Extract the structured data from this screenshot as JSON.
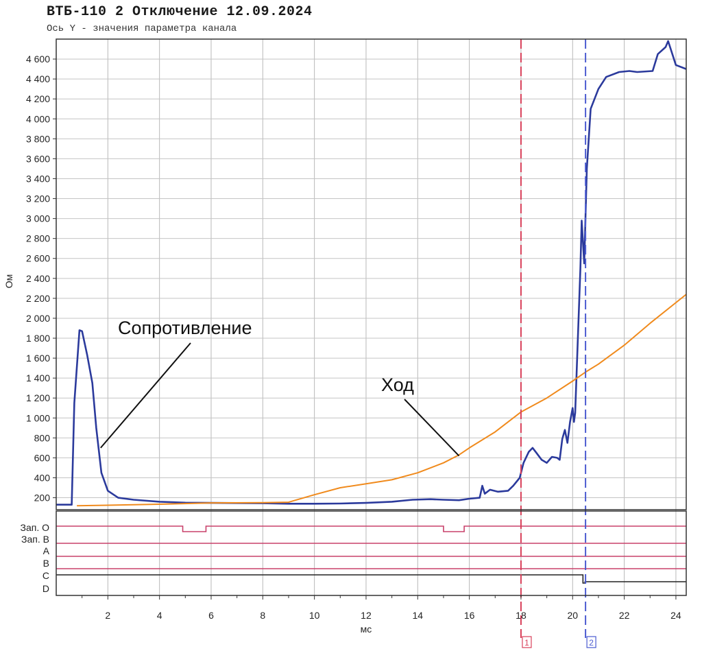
{
  "chart_data": {
    "type": "line",
    "title": "ВТБ-110 2 Отключение 12.09.2024",
    "subtitle": "Ось Y - значения параметра канала",
    "xlabel": "мс",
    "ylabel": "Ом",
    "xlim": [
      0,
      24.4
    ],
    "ylim": [
      80,
      4800
    ],
    "x_ticks": [
      {
        "v": 2,
        "label": "2"
      },
      {
        "v": 4,
        "label": "4"
      },
      {
        "v": 6,
        "label": "6"
      },
      {
        "v": 8,
        "label": "8"
      },
      {
        "v": 10,
        "label": "10"
      },
      {
        "v": 12,
        "label": "12"
      },
      {
        "v": 14,
        "label": "14"
      },
      {
        "v": 16,
        "label": "16"
      },
      {
        "v": 18,
        "label": "18"
      },
      {
        "v": 20,
        "label": "20"
      },
      {
        "v": 22,
        "label": "22"
      },
      {
        "v": 24,
        "label": "24"
      }
    ],
    "y_ticks": [
      {
        "v": 200,
        "label": "200"
      },
      {
        "v": 400,
        "label": "400"
      },
      {
        "v": 600,
        "label": "600"
      },
      {
        "v": 800,
        "label": "800"
      },
      {
        "v": 1000,
        "label": "1 000"
      },
      {
        "v": 1200,
        "label": "1 200"
      },
      {
        "v": 1400,
        "label": "1 400"
      },
      {
        "v": 1600,
        "label": "1 600"
      },
      {
        "v": 1800,
        "label": "1 800"
      },
      {
        "v": 2000,
        "label": "2 000"
      },
      {
        "v": 2200,
        "label": "2 200"
      },
      {
        "v": 2400,
        "label": "2 400"
      },
      {
        "v": 2600,
        "label": "2 600"
      },
      {
        "v": 2800,
        "label": "2 800"
      },
      {
        "v": 3000,
        "label": "3 000"
      },
      {
        "v": 3200,
        "label": "3 200"
      },
      {
        "v": 3400,
        "label": "3 400"
      },
      {
        "v": 3600,
        "label": "3 600"
      },
      {
        "v": 3800,
        "label": "3 800"
      },
      {
        "v": 4000,
        "label": "4 000"
      },
      {
        "v": 4200,
        "label": "4 200"
      },
      {
        "v": 4400,
        "label": "4 400"
      },
      {
        "v": 4600,
        "label": "4 600"
      }
    ],
    "grid": true,
    "series": [
      {
        "name": "Сопротивление",
        "color": "#2b3a9c",
        "points": [
          [
            0,
            130
          ],
          [
            0.6,
            130
          ],
          [
            0.7,
            1150
          ],
          [
            0.9,
            1880
          ],
          [
            1.0,
            1870
          ],
          [
            1.2,
            1630
          ],
          [
            1.4,
            1350
          ],
          [
            1.55,
            900
          ],
          [
            1.75,
            450
          ],
          [
            2.0,
            270
          ],
          [
            2.4,
            200
          ],
          [
            3.0,
            180
          ],
          [
            4.0,
            160
          ],
          [
            5.0,
            150
          ],
          [
            6.0,
            148
          ],
          [
            8.0,
            145
          ],
          [
            9.0,
            140
          ],
          [
            10.0,
            140
          ],
          [
            11.0,
            142
          ],
          [
            12.0,
            148
          ],
          [
            13.0,
            160
          ],
          [
            13.8,
            180
          ],
          [
            14.5,
            185
          ],
          [
            15.0,
            180
          ],
          [
            15.6,
            175
          ],
          [
            16.0,
            190
          ],
          [
            16.4,
            200
          ],
          [
            16.5,
            320
          ],
          [
            16.6,
            240
          ],
          [
            16.8,
            280
          ],
          [
            17.1,
            260
          ],
          [
            17.5,
            270
          ],
          [
            17.7,
            320
          ],
          [
            17.95,
            400
          ],
          [
            18.1,
            550
          ],
          [
            18.3,
            660
          ],
          [
            18.45,
            700
          ],
          [
            18.6,
            650
          ],
          [
            18.8,
            580
          ],
          [
            19.0,
            550
          ],
          [
            19.2,
            610
          ],
          [
            19.4,
            600
          ],
          [
            19.5,
            580
          ],
          [
            19.6,
            790
          ],
          [
            19.7,
            880
          ],
          [
            19.8,
            750
          ],
          [
            19.9,
            960
          ],
          [
            20.0,
            1100
          ],
          [
            20.05,
            960
          ],
          [
            20.1,
            1050
          ],
          [
            20.3,
            2500
          ],
          [
            20.35,
            2980
          ],
          [
            20.45,
            2550
          ],
          [
            20.55,
            3500
          ],
          [
            20.7,
            4100
          ],
          [
            21.0,
            4300
          ],
          [
            21.3,
            4420
          ],
          [
            21.8,
            4470
          ],
          [
            22.2,
            4480
          ],
          [
            22.5,
            4470
          ],
          [
            23.1,
            4480
          ],
          [
            23.3,
            4650
          ],
          [
            23.6,
            4720
          ],
          [
            23.7,
            4780
          ],
          [
            24.0,
            4540
          ],
          [
            24.4,
            4500
          ]
        ]
      },
      {
        "name": "Ход",
        "color": "#f08a1c",
        "points": [
          [
            0.8,
            120
          ],
          [
            2.0,
            125
          ],
          [
            4.0,
            135
          ],
          [
            6.0,
            148
          ],
          [
            8.0,
            150
          ],
          [
            9.0,
            155
          ],
          [
            10.0,
            230
          ],
          [
            11.0,
            300
          ],
          [
            12.0,
            340
          ],
          [
            13.0,
            380
          ],
          [
            14.0,
            450
          ],
          [
            15.0,
            550
          ],
          [
            15.6,
            630
          ],
          [
            16.0,
            700
          ],
          [
            17.0,
            860
          ],
          [
            18.0,
            1060
          ],
          [
            19.0,
            1200
          ],
          [
            20.0,
            1370
          ],
          [
            20.5,
            1460
          ],
          [
            21.0,
            1540
          ],
          [
            22.0,
            1730
          ],
          [
            23.0,
            1950
          ],
          [
            24.4,
            2240
          ]
        ]
      }
    ],
    "annotations": [
      {
        "text": "Сопротивление",
        "target_x": 1.72,
        "target_y": 700
      },
      {
        "text": "Ход",
        "target_x": 15.6,
        "target_y": 620
      }
    ],
    "markers": [
      {
        "x": 18.0,
        "label": "1",
        "color": "#d8405a"
      },
      {
        "x": 20.5,
        "label": "2",
        "color": "#4a5ad0"
      }
    ],
    "digital_channels": [
      {
        "label": "Зап. О",
        "color": "#c8406a",
        "pulses": [
          [
            4.9,
            5.8
          ],
          [
            15.0,
            15.8
          ]
        ]
      },
      {
        "label": "Зап. В",
        "color": "#c8406a",
        "pulses": []
      },
      {
        "label": "A",
        "color": "#c8406a",
        "pulses": []
      },
      {
        "label": "B",
        "color": "#c8406a",
        "pulses": []
      },
      {
        "label": "C",
        "color": "#222222",
        "switch_x": 20.4
      },
      {
        "label": "D",
        "color": "#222222",
        "pulses": []
      }
    ]
  }
}
